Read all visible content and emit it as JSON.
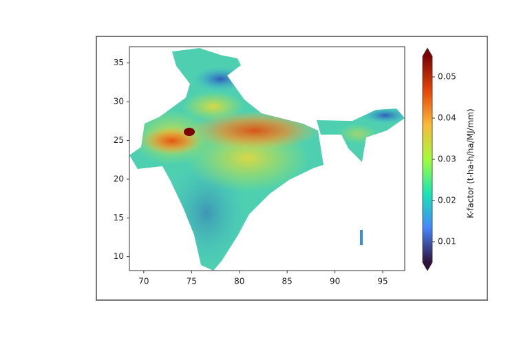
{
  "chart_data": {
    "type": "map",
    "xlim": [
      68.5,
      97.3
    ],
    "xticks": [
      70,
      75,
      80,
      85,
      90,
      95
    ],
    "ylim": [
      8.2,
      37.1
    ],
    "yticks": [
      10,
      15,
      20,
      25,
      30,
      35
    ],
    "colorbar": {
      "label": "K-factor (t-ha-h/ha/MJ/mm)",
      "lim": [
        0.005,
        0.055
      ],
      "ticks": [
        0.01,
        0.02,
        0.03,
        0.04,
        0.05
      ],
      "colormap": "turbo",
      "extend": "both"
    }
  }
}
